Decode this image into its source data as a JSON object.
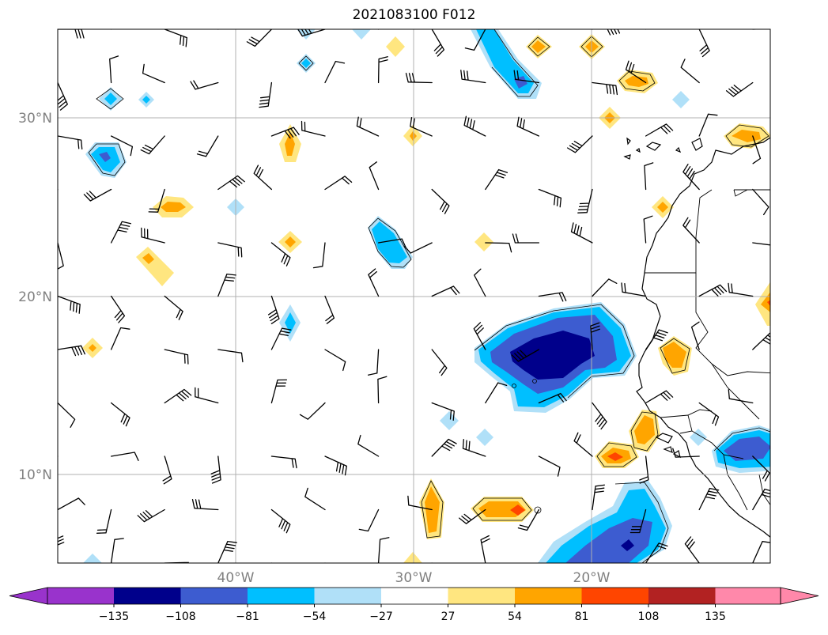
{
  "title": "2021083100 F012",
  "lat_labels": [
    "30°N",
    "20°N",
    "10°N"
  ],
  "lon_labels": [
    "40°W",
    "30°W",
    "20°W"
  ],
  "colorbar": {
    "ticks": [
      "−135",
      "−108",
      "−81",
      "−54",
      "−27",
      "27",
      "54",
      "81",
      "108",
      "135"
    ],
    "colors": [
      "#9933cc",
      "#00008b",
      "#3d5cd0",
      "#00bfff",
      "#b0e0f8",
      "#ffffff",
      "#ffe680",
      "#ffa500",
      "#ff4500",
      "#b22222",
      "#ff88aa"
    ],
    "extend": "both"
  }
}
